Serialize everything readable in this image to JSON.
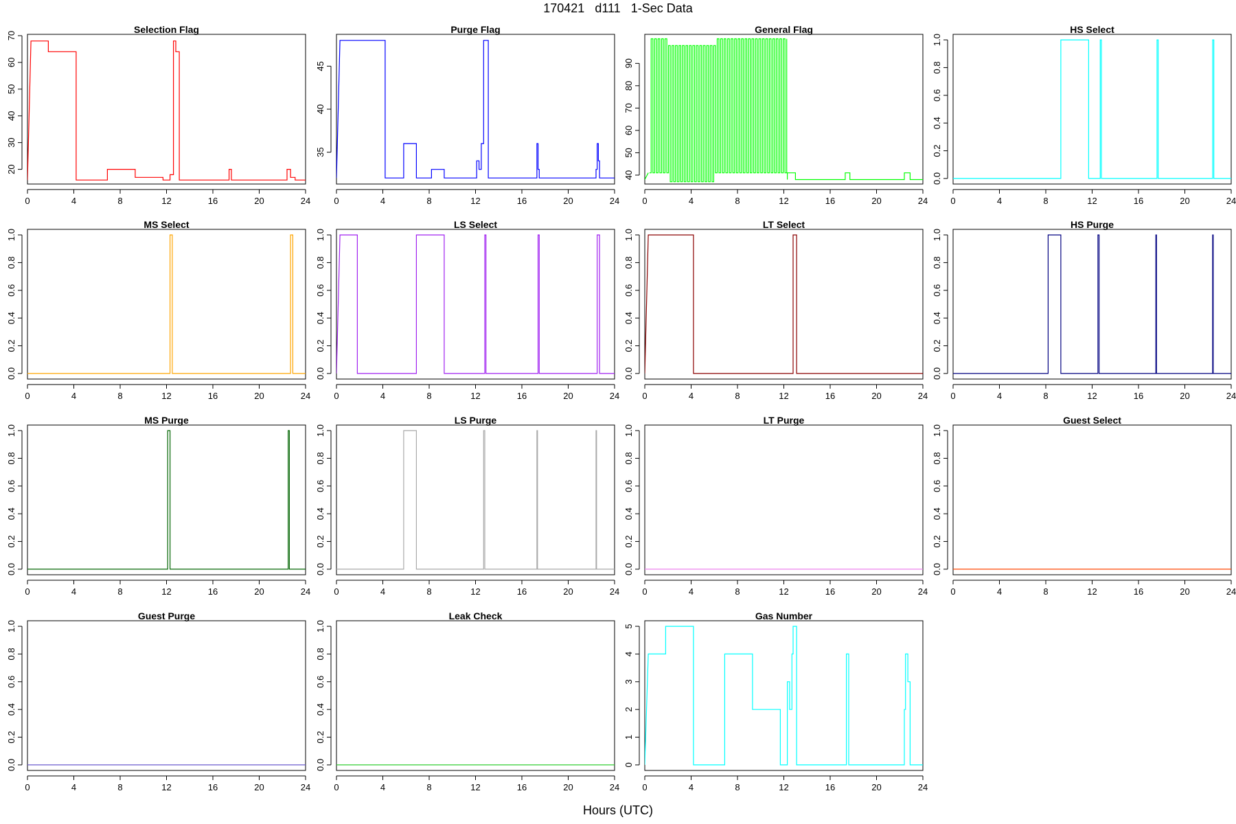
{
  "title": "170421   d111   1-Sec Data",
  "xlabel": "Hours (UTC)",
  "x_ticks": [
    0,
    4,
    8,
    12,
    16,
    20,
    24
  ],
  "chart_data": [
    {
      "type": "line",
      "title": "Selection Flag",
      "color": "#ff0000",
      "xlim": [
        0,
        24
      ],
      "ylim": [
        14.5,
        70.5
      ],
      "y_ticks": [
        20,
        30,
        40,
        50,
        60,
        70
      ],
      "rotate_y": true,
      "series": [
        {
          "x": [
            0,
            0.3,
            1.8,
            1.8,
            4.2,
            4.2,
            6.9,
            6.9,
            9.3,
            9.3,
            11.7,
            11.7,
            12.3,
            12.3,
            12.6,
            12.6,
            12.8,
            12.8,
            13.1,
            13.1,
            17.4,
            17.4,
            17.6,
            17.6,
            22.4,
            22.4,
            22.7,
            22.7,
            23.1,
            23.1,
            24
          ],
          "y": [
            16,
            68,
            68,
            64,
            64,
            16,
            16,
            20,
            20,
            17,
            17,
            16,
            16,
            18,
            18,
            68,
            68,
            64,
            64,
            16,
            16,
            20,
            20,
            16,
            16,
            20,
            20,
            17,
            17,
            16,
            16
          ]
        }
      ]
    },
    {
      "type": "line",
      "title": "Purge Flag",
      "color": "#0000ff",
      "xlim": [
        0,
        24
      ],
      "ylim": [
        31.3,
        48.7
      ],
      "y_ticks": [
        35,
        40,
        45
      ],
      "rotate_y": true,
      "series": [
        {
          "x": [
            0,
            0.3,
            4.2,
            4.2,
            5.8,
            5.8,
            6.9,
            6.9,
            8.2,
            8.2,
            9.3,
            9.3,
            12.1,
            12.1,
            12.3,
            12.3,
            12.5,
            12.5,
            12.7,
            12.7,
            13.1,
            13.1,
            17.3,
            17.3,
            17.4,
            17.4,
            17.5,
            17.5,
            22.4,
            22.4,
            22.5,
            22.5,
            22.6,
            22.6,
            22.7,
            22.7,
            24
          ],
          "y": [
            32,
            48,
            48,
            32,
            32,
            36,
            36,
            32,
            32,
            33,
            33,
            32,
            32,
            34,
            34,
            33,
            33,
            36,
            36,
            48,
            48,
            32,
            32,
            36,
            36,
            33,
            33,
            32,
            32,
            33,
            33,
            36,
            36,
            34,
            34,
            32,
            32
          ]
        }
      ]
    },
    {
      "type": "line",
      "title": "General Flag",
      "color": "#00ff00",
      "xlim": [
        0,
        24
      ],
      "ylim": [
        36,
        103
      ],
      "y_ticks": [
        40,
        50,
        60,
        70,
        80,
        90
      ],
      "rotate_y": true,
      "oscillation": {
        "from": 0.4,
        "to": 12.3,
        "period": 0.3,
        "low": 41,
        "high": 101,
        "dense": [
          2.0,
          6.0,
          37,
          98
        ]
      },
      "series": [
        {
          "x": [
            0,
            0.3
          ],
          "y": [
            38,
            41
          ]
        },
        {
          "x": [
            12.3,
            12.3,
            13.0,
            13.0,
            17.3,
            17.3,
            17.7,
            17.7,
            22.4,
            22.4,
            22.9,
            22.9,
            24
          ],
          "y": [
            38,
            41,
            41,
            38,
            38,
            41,
            41,
            38,
            38,
            41,
            41,
            38,
            38
          ]
        }
      ]
    },
    {
      "type": "line",
      "title": "HS Select",
      "color": "#00ffff",
      "xlim": [
        0,
        24
      ],
      "ylim": [
        -0.04,
        1.04
      ],
      "y_ticks": [
        0.0,
        0.2,
        0.4,
        0.6,
        0.8,
        1.0
      ],
      "rotate_y": true,
      "series": [
        {
          "x": [
            0,
            9.3,
            9.3,
            11.7,
            11.7,
            12.7,
            12.7,
            12.8,
            12.8,
            17.6,
            17.6,
            17.7,
            17.7,
            22.4,
            22.4,
            22.5,
            22.5,
            24
          ],
          "y": [
            0,
            0,
            1,
            1,
            0,
            0,
            1,
            1,
            0,
            0,
            1,
            1,
            0,
            0,
            1,
            1,
            0,
            0
          ]
        }
      ]
    },
    {
      "type": "line",
      "title": "MS Select",
      "color": "#ffa500",
      "xlim": [
        0,
        24
      ],
      "ylim": [
        -0.04,
        1.04
      ],
      "y_ticks": [
        0.0,
        0.2,
        0.4,
        0.6,
        0.8,
        1.0
      ],
      "rotate_y": true,
      "series": [
        {
          "x": [
            0,
            12.3,
            12.3,
            12.5,
            12.5,
            22.7,
            22.7,
            22.9,
            22.9,
            24
          ],
          "y": [
            0,
            0,
            1,
            1,
            0,
            0,
            1,
            1,
            0,
            0
          ]
        }
      ]
    },
    {
      "type": "line",
      "title": "LS Select",
      "color": "#a020f0",
      "xlim": [
        0,
        24
      ],
      "ylim": [
        -0.04,
        1.04
      ],
      "y_ticks": [
        0.0,
        0.2,
        0.4,
        0.6,
        0.8,
        1.0
      ],
      "rotate_y": true,
      "series": [
        {
          "x": [
            0,
            0.3,
            1.8,
            1.8,
            6.9,
            6.9,
            9.3,
            9.3,
            12.8,
            12.8,
            12.9,
            12.9,
            17.4,
            17.4,
            17.5,
            17.5,
            22.5,
            22.5,
            22.7,
            22.7,
            24
          ],
          "y": [
            0,
            1,
            1,
            0,
            0,
            1,
            1,
            0,
            0,
            1,
            1,
            0,
            0,
            1,
            1,
            0,
            0,
            1,
            1,
            0,
            0
          ]
        }
      ]
    },
    {
      "type": "line",
      "title": "LT Select",
      "color": "#8b0000",
      "xlim": [
        0,
        24
      ],
      "ylim": [
        -0.04,
        1.04
      ],
      "y_ticks": [
        0.0,
        0.2,
        0.4,
        0.6,
        0.8,
        1.0
      ],
      "rotate_y": true,
      "series": [
        {
          "x": [
            0,
            0.3,
            4.2,
            4.2,
            12.8,
            12.8,
            13.1,
            13.1,
            24
          ],
          "y": [
            0,
            1,
            1,
            0,
            0,
            1,
            1,
            0,
            0
          ]
        }
      ]
    },
    {
      "type": "line",
      "title": "HS Purge",
      "color": "#000080",
      "xlim": [
        0,
        24
      ],
      "ylim": [
        -0.04,
        1.04
      ],
      "y_ticks": [
        0.0,
        0.2,
        0.4,
        0.6,
        0.8,
        1.0
      ],
      "rotate_y": true,
      "series": [
        {
          "x": [
            0,
            8.2,
            8.2,
            9.3,
            9.3,
            12.5,
            12.5,
            12.6,
            12.6,
            17.5,
            17.5,
            17.55,
            17.55,
            22.4,
            22.4,
            22.45,
            22.45,
            24
          ],
          "y": [
            0,
            0,
            1,
            1,
            0,
            0,
            1,
            1,
            0,
            0,
            1,
            1,
            0,
            0,
            1,
            1,
            0,
            0
          ]
        }
      ]
    },
    {
      "type": "line",
      "title": "MS Purge",
      "color": "#006400",
      "xlim": [
        0,
        24
      ],
      "ylim": [
        -0.04,
        1.04
      ],
      "y_ticks": [
        0.0,
        0.2,
        0.4,
        0.6,
        0.8,
        1.0
      ],
      "rotate_y": true,
      "series": [
        {
          "x": [
            0,
            12.1,
            12.1,
            12.3,
            12.3,
            22.5,
            22.5,
            22.6,
            22.6,
            24
          ],
          "y": [
            0,
            0,
            1,
            1,
            0,
            0,
            1,
            1,
            0,
            0
          ]
        }
      ]
    },
    {
      "type": "line",
      "title": "LS Purge",
      "color": "#a9a9a9",
      "xlim": [
        0,
        24
      ],
      "ylim": [
        -0.04,
        1.04
      ],
      "y_ticks": [
        0.0,
        0.2,
        0.4,
        0.6,
        0.8,
        1.0
      ],
      "rotate_y": true,
      "series": [
        {
          "x": [
            0,
            5.8,
            5.8,
            6.9,
            6.9,
            12.7,
            12.7,
            12.8,
            12.8,
            17.3,
            17.3,
            17.35,
            17.35,
            22.4,
            22.4,
            22.45,
            22.45,
            24
          ],
          "y": [
            0,
            0,
            1,
            1,
            0,
            0,
            1,
            1,
            0,
            0,
            1,
            1,
            0,
            0,
            1,
            1,
            0,
            0
          ]
        }
      ]
    },
    {
      "type": "line",
      "title": "LT Purge",
      "color": "#ee82ee",
      "xlim": [
        0,
        24
      ],
      "ylim": [
        -0.04,
        1.04
      ],
      "y_ticks": [
        0.0,
        0.2,
        0.4,
        0.6,
        0.8,
        1.0
      ],
      "rotate_y": true,
      "series": [
        {
          "x": [
            0,
            24
          ],
          "y": [
            0,
            0
          ]
        }
      ]
    },
    {
      "type": "line",
      "title": "Guest Select",
      "color": "#ff4500",
      "xlim": [
        0,
        24
      ],
      "ylim": [
        -0.04,
        1.04
      ],
      "y_ticks": [
        0.0,
        0.2,
        0.4,
        0.6,
        0.8,
        1.0
      ],
      "rotate_y": true,
      "series": [
        {
          "x": [
            0,
            24
          ],
          "y": [
            0,
            0
          ]
        }
      ]
    },
    {
      "type": "line",
      "title": "Guest Purge",
      "color": "#6a5acd",
      "xlim": [
        0,
        24
      ],
      "ylim": [
        -0.04,
        1.04
      ],
      "y_ticks": [
        0.0,
        0.2,
        0.4,
        0.6,
        0.8,
        1.0
      ],
      "rotate_y": true,
      "series": [
        {
          "x": [
            0,
            24
          ],
          "y": [
            0,
            0
          ]
        }
      ]
    },
    {
      "type": "line",
      "title": "Leak Check",
      "color": "#32cd32",
      "xlim": [
        0,
        24
      ],
      "ylim": [
        -0.04,
        1.04
      ],
      "y_ticks": [
        0.0,
        0.2,
        0.4,
        0.6,
        0.8,
        1.0
      ],
      "rotate_y": true,
      "series": [
        {
          "x": [
            0,
            24
          ],
          "y": [
            0,
            0
          ]
        }
      ]
    },
    {
      "type": "line",
      "title": "Gas Number",
      "color": "#00ffff",
      "xlim": [
        0,
        24
      ],
      "ylim": [
        -0.2,
        5.2
      ],
      "y_ticks": [
        0,
        1,
        2,
        3,
        4,
        5
      ],
      "rotate_y": true,
      "series": [
        {
          "x": [
            0,
            0.3,
            1.8,
            1.8,
            4.2,
            4.2,
            6.9,
            6.9,
            9.3,
            9.3,
            11.7,
            11.7,
            12.3,
            12.3,
            12.5,
            12.5,
            12.7,
            12.7,
            12.8,
            12.8,
            13.1,
            13.1,
            17.4,
            17.4,
            17.6,
            17.6,
            22.4,
            22.4,
            22.5,
            22.5,
            22.7,
            22.7,
            22.9,
            22.9,
            24
          ],
          "y": [
            0,
            4,
            4,
            5,
            5,
            0,
            0,
            4,
            4,
            2,
            2,
            0,
            0,
            3,
            3,
            2,
            2,
            4,
            4,
            5,
            5,
            0,
            0,
            4,
            4,
            0,
            0,
            2,
            2,
            4,
            4,
            3,
            3,
            0,
            0
          ]
        }
      ]
    }
  ]
}
